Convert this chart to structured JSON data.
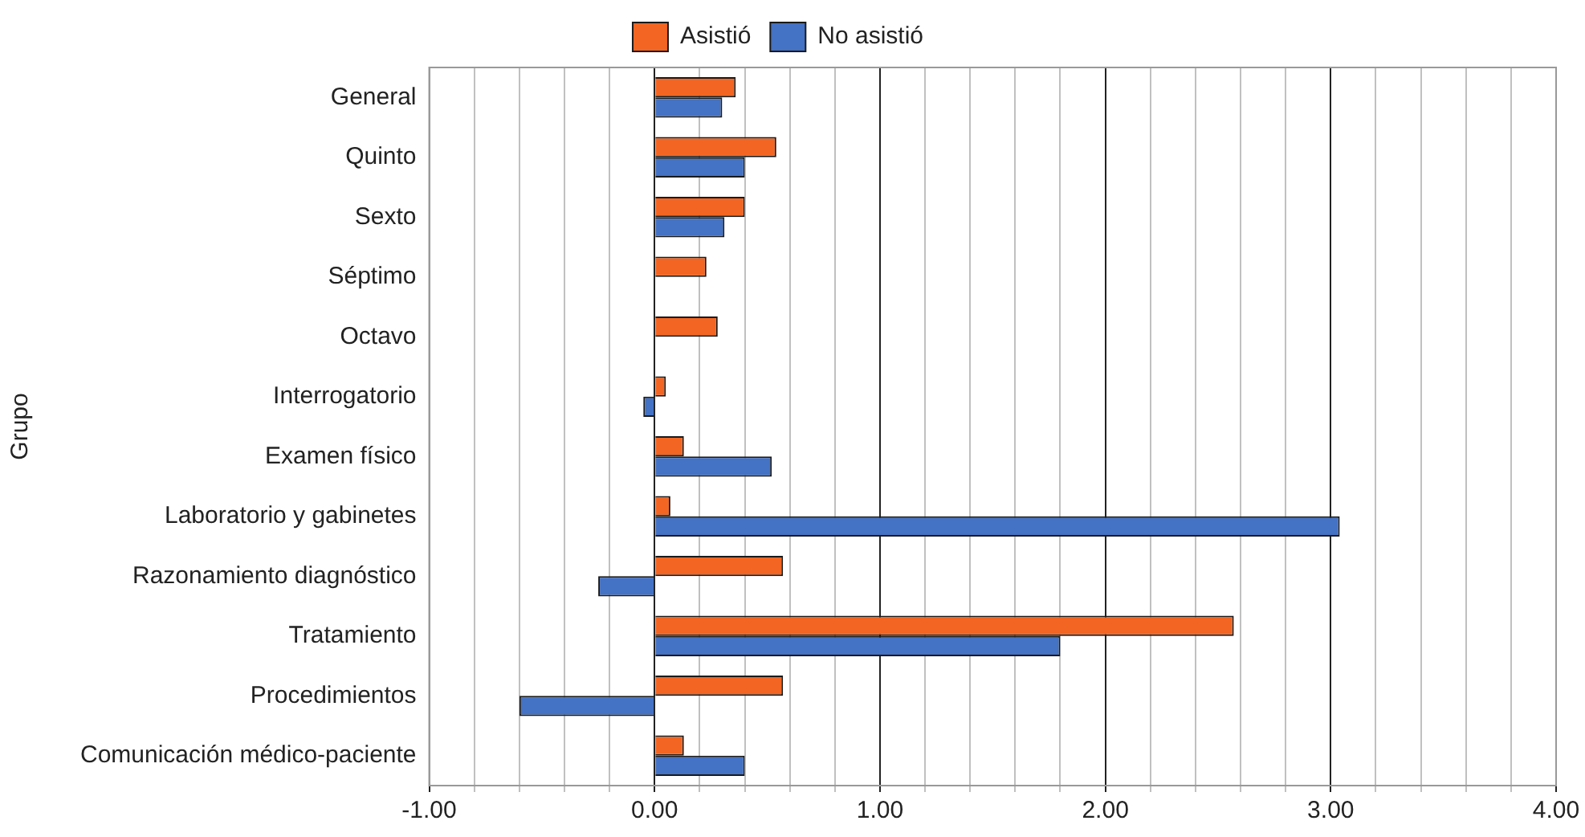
{
  "chart_data": {
    "type": "bar",
    "orientation": "horizontal",
    "ylabel": "Grupo",
    "categories": [
      "General",
      "Quinto",
      "Sexto",
      "Séptimo",
      "Octavo",
      "Interrogatorio",
      "Examen físico",
      "Laboratorio y gabinetes",
      "Razonamiento diagnóstico",
      "Tratamiento",
      "Procedimientos",
      "Comunicación médico-paciente"
    ],
    "series": [
      {
        "name": "Asistió",
        "color": "#f26522",
        "values": [
          0.36,
          0.54,
          0.4,
          0.23,
          0.28,
          0.05,
          0.13,
          0.07,
          0.57,
          2.57,
          0.57,
          0.13
        ]
      },
      {
        "name": "No asistió",
        "color": "#4472c4",
        "values": [
          0.3,
          0.4,
          0.31,
          null,
          null,
          -0.05,
          0.52,
          3.04,
          -0.25,
          1.8,
          -0.6,
          0.4
        ]
      }
    ],
    "xlim": [
      -1,
      4
    ],
    "xticks": [
      {
        "value": -1,
        "label": "-1.00"
      },
      {
        "value": -0.8,
        "label": null
      },
      {
        "value": -0.6,
        "label": null
      },
      {
        "value": -0.4,
        "label": null
      },
      {
        "value": -0.2,
        "label": null
      },
      {
        "value": 0,
        "label": "0.00"
      },
      {
        "value": 0.2,
        "label": null
      },
      {
        "value": 0.4,
        "label": null
      },
      {
        "value": 0.6,
        "label": null
      },
      {
        "value": 0.8,
        "label": null
      },
      {
        "value": 1,
        "label": "1.00"
      },
      {
        "value": 1.2,
        "label": null
      },
      {
        "value": 1.4,
        "label": null
      },
      {
        "value": 1.6,
        "label": null
      },
      {
        "value": 1.8,
        "label": null
      },
      {
        "value": 2,
        "label": "2.00"
      },
      {
        "value": 2.2,
        "label": null
      },
      {
        "value": 2.4,
        "label": null
      },
      {
        "value": 2.6,
        "label": null
      },
      {
        "value": 2.8,
        "label": null
      },
      {
        "value": 3,
        "label": "3.00"
      },
      {
        "value": 3.2,
        "label": null
      },
      {
        "value": 3.4,
        "label": null
      },
      {
        "value": 3.6,
        "label": null
      },
      {
        "value": 3.8,
        "label": null
      },
      {
        "value": 4,
        "label": "4.00"
      }
    ],
    "grid": "x",
    "legend": "top"
  }
}
